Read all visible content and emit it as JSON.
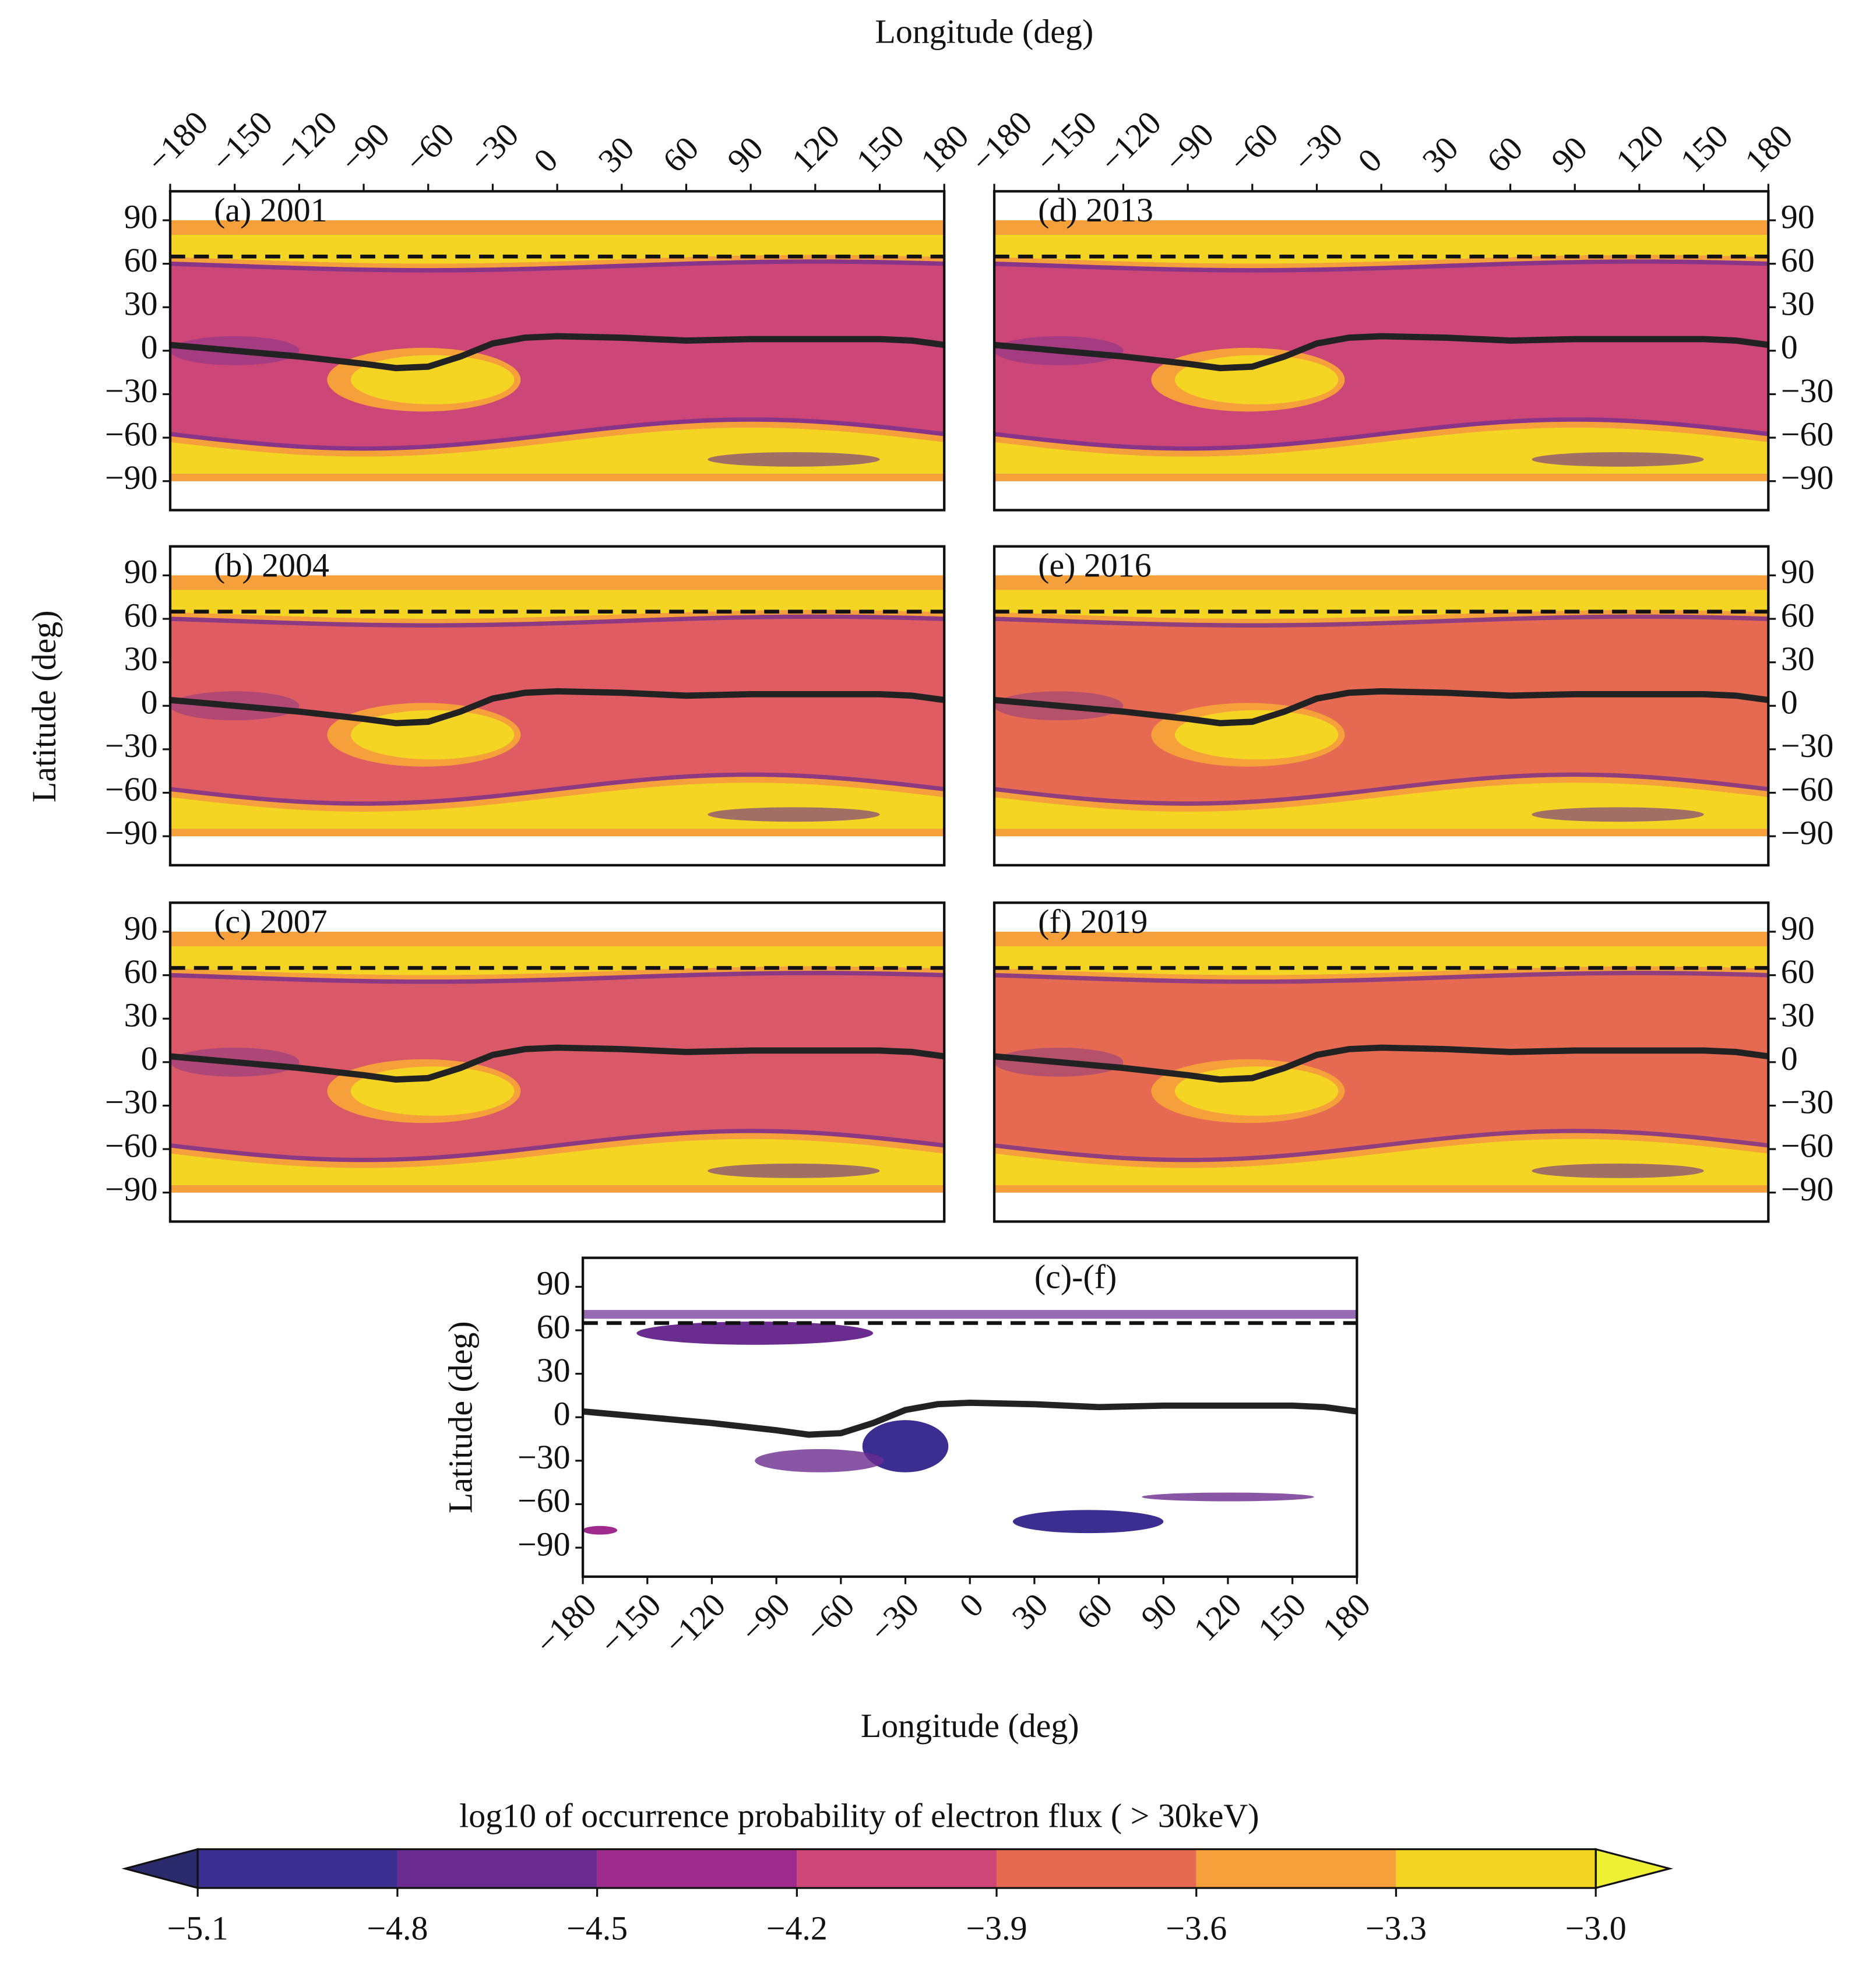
{
  "chart_data": [
    {
      "type": "contour",
      "title": "(a) 2001",
      "xlabel": "Longitude (deg)",
      "background_color": "#cc4777",
      "xlim": [
        -180,
        180
      ],
      "ylim": [
        -110,
        110
      ],
      "xticks": [
        {
          "value": -180,
          "label": "−180"
        },
        {
          "value": -150,
          "label": "−150"
        },
        {
          "value": -120,
          "label": "−120"
        },
        {
          "value": -90,
          "label": "−90"
        },
        {
          "value": -60,
          "label": "−60"
        },
        {
          "value": -30,
          "label": "−30"
        },
        0,
        30,
        60,
        90,
        120,
        150,
        180
      ],
      "yticks": [
        90,
        60,
        30,
        0,
        {
          "value": -30,
          "label": "−30"
        },
        {
          "value": -60,
          "label": "−60"
        },
        {
          "value": -90,
          "label": "−90"
        }
      ],
      "dashed_y": 65,
      "curve": {
        "x": [
          -180,
          -150,
          -120,
          -90,
          -75,
          -60,
          -45,
          -30,
          -15,
          0,
          30,
          60,
          90,
          120,
          150,
          165,
          180
        ],
        "y": [
          4,
          0,
          -4,
          -9,
          -12,
          -11,
          -4,
          5,
          9,
          10,
          9,
          7,
          8,
          8,
          8,
          7,
          4
        ]
      }
    },
    {
      "type": "contour",
      "title": "(b) 2004",
      "ylabel": "Latitude (deg)",
      "background_color": "#df5d62",
      "xlim": [
        -180,
        180
      ],
      "ylim": [
        -110,
        110
      ],
      "yticks": [
        90,
        60,
        30,
        0,
        {
          "value": -30,
          "label": "−30"
        },
        {
          "value": -60,
          "label": "−60"
        },
        {
          "value": -90,
          "label": "−90"
        }
      ],
      "dashed_y": 65,
      "curve": {
        "x": [
          -180,
          -150,
          -120,
          -90,
          -75,
          -60,
          -45,
          -30,
          -15,
          0,
          30,
          60,
          90,
          120,
          150,
          165,
          180
        ],
        "y": [
          4,
          0,
          -4,
          -9,
          -12,
          -11,
          -4,
          5,
          9,
          10,
          9,
          7,
          8,
          8,
          8,
          7,
          4
        ]
      }
    },
    {
      "type": "contour",
      "title": "(c) 2007",
      "background_color": "#da5968",
      "xlim": [
        -180,
        180
      ],
      "ylim": [
        -110,
        110
      ],
      "yticks": [
        90,
        60,
        30,
        0,
        {
          "value": -30,
          "label": "−30"
        },
        {
          "value": -60,
          "label": "−60"
        },
        {
          "value": -90,
          "label": "−90"
        }
      ],
      "dashed_y": 65,
      "curve": {
        "x": [
          -180,
          -150,
          -120,
          -90,
          -75,
          -60,
          -45,
          -30,
          -15,
          0,
          30,
          60,
          90,
          120,
          150,
          165,
          180
        ],
        "y": [
          4,
          0,
          -4,
          -9,
          -12,
          -11,
          -4,
          5,
          9,
          10,
          9,
          7,
          8,
          8,
          8,
          7,
          4
        ]
      }
    },
    {
      "type": "contour",
      "title": "(d) 2013",
      "background_color": "#cc4777",
      "xlim": [
        -180,
        180
      ],
      "ylim": [
        -110,
        110
      ],
      "xticks": [
        {
          "value": -180,
          "label": "−180"
        },
        {
          "value": -150,
          "label": "−150"
        },
        {
          "value": -120,
          "label": "−120"
        },
        {
          "value": -90,
          "label": "−90"
        },
        {
          "value": -60,
          "label": "−60"
        },
        {
          "value": -30,
          "label": "−30"
        },
        0,
        30,
        60,
        90,
        120,
        150,
        180
      ],
      "yticks": [
        90,
        60,
        30,
        0,
        {
          "value": -30,
          "label": "−30"
        },
        {
          "value": -60,
          "label": "−60"
        },
        {
          "value": -90,
          "label": "−90"
        }
      ],
      "dashed_y": 65,
      "curve": {
        "x": [
          -180,
          -150,
          -120,
          -90,
          -75,
          -60,
          -45,
          -30,
          -15,
          0,
          30,
          60,
          90,
          120,
          150,
          165,
          180
        ],
        "y": [
          4,
          0,
          -4,
          -9,
          -12,
          -11,
          -4,
          5,
          9,
          10,
          9,
          7,
          8,
          8,
          8,
          7,
          4
        ]
      }
    },
    {
      "type": "contour",
      "title": "(e) 2016",
      "background_color": "#e66a52",
      "xlim": [
        -180,
        180
      ],
      "ylim": [
        -110,
        110
      ],
      "yticks": [
        90,
        60,
        30,
        0,
        {
          "value": -30,
          "label": "−30"
        },
        {
          "value": -60,
          "label": "−60"
        },
        {
          "value": -90,
          "label": "−90"
        }
      ],
      "dashed_y": 65,
      "curve": {
        "x": [
          -180,
          -150,
          -120,
          -90,
          -75,
          -60,
          -45,
          -30,
          -15,
          0,
          30,
          60,
          90,
          120,
          150,
          165,
          180
        ],
        "y": [
          4,
          0,
          -4,
          -9,
          -12,
          -11,
          -4,
          5,
          9,
          10,
          9,
          7,
          8,
          8,
          8,
          7,
          4
        ]
      }
    },
    {
      "type": "contour",
      "title": "(f) 2019",
      "background_color": "#e66a52",
      "xlim": [
        -180,
        180
      ],
      "ylim": [
        -110,
        110
      ],
      "yticks": [
        90,
        60,
        30,
        0,
        {
          "value": -30,
          "label": "−30"
        },
        {
          "value": -60,
          "label": "−60"
        },
        {
          "value": -90,
          "label": "−90"
        }
      ],
      "dashed_y": 65,
      "curve": {
        "x": [
          -180,
          -150,
          -120,
          -90,
          -75,
          -60,
          -45,
          -30,
          -15,
          0,
          30,
          60,
          90,
          120,
          150,
          165,
          180
        ],
        "y": [
          4,
          0,
          -4,
          -9,
          -12,
          -11,
          -4,
          5,
          9,
          10,
          9,
          7,
          8,
          8,
          8,
          7,
          4
        ]
      }
    },
    {
      "type": "difference",
      "title": "(c)-(f)",
      "xlabel": "Longitude (deg)",
      "ylabel": "Latitude (deg)",
      "background_color": "#ffffff",
      "xlim": [
        -180,
        180
      ],
      "ylim": [
        -110,
        110
      ],
      "xticks": [
        {
          "value": -180,
          "label": "−180"
        },
        {
          "value": -150,
          "label": "−150"
        },
        {
          "value": -120,
          "label": "−120"
        },
        {
          "value": -90,
          "label": "−90"
        },
        {
          "value": -60,
          "label": "−60"
        },
        {
          "value": -30,
          "label": "−30"
        },
        0,
        30,
        60,
        90,
        120,
        150,
        180
      ],
      "yticks": [
        90,
        60,
        30,
        0,
        {
          "value": -30,
          "label": "−30"
        },
        {
          "value": -60,
          "label": "−60"
        },
        {
          "value": -90,
          "label": "−90"
        }
      ],
      "dashed_y": 65,
      "curve": {
        "x": [
          -180,
          -150,
          -120,
          -90,
          -75,
          -60,
          -45,
          -30,
          -15,
          0,
          30,
          60,
          90,
          120,
          150,
          165,
          180
        ],
        "y": [
          4,
          0,
          -4,
          -9,
          -12,
          -11,
          -4,
          5,
          9,
          10,
          9,
          7,
          8,
          8,
          8,
          7,
          4
        ]
      }
    },
    {
      "type": "colorbar",
      "title": "log10 of occurrence probability of electron flux ( > 30keV)",
      "xlim": [
        -5.1,
        -3.0
      ],
      "levels": [
        {
          "value": -5.1,
          "label": "−5.1"
        },
        {
          "value": -4.8,
          "label": "−4.8"
        },
        {
          "value": -4.5,
          "label": "−4.5"
        },
        {
          "value": -4.2,
          "label": "−4.2"
        },
        {
          "value": -3.9,
          "label": "−3.9"
        },
        {
          "value": -3.6,
          "label": "−3.6"
        },
        {
          "value": -3.3,
          "label": "−3.3"
        },
        {
          "value": -3.0,
          "label": "−3.0"
        }
      ],
      "colors": [
        "#2b2a6c",
        "#3a2e91",
        "#6b2c90",
        "#9f2a8d",
        "#cc4777",
        "#e66a52",
        "#f5a03a",
        "#f4d524",
        "#eef034"
      ]
    }
  ]
}
